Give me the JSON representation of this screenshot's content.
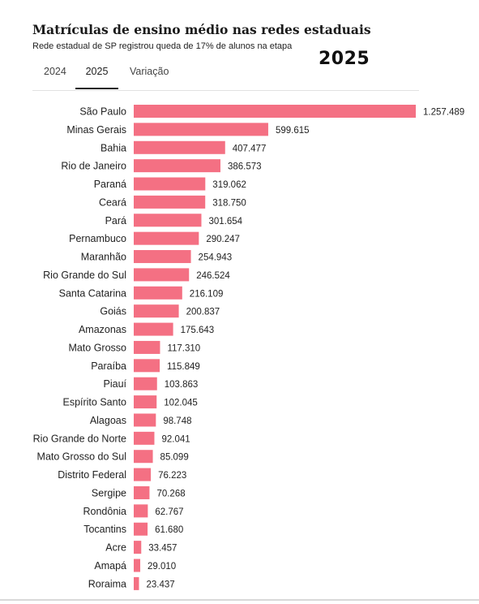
{
  "header": {
    "title": "Matrículas de ensino médio nas redes estaduais",
    "subtitle": "Rede estadual de SP registrou queda de 17% de alunos na etapa",
    "year_badge": "2025"
  },
  "tabs": [
    {
      "label": "2024",
      "active": false
    },
    {
      "label": "2025",
      "active": true
    },
    {
      "label": "Variação",
      "active": false
    }
  ],
  "colors": {
    "bar": "#f47083"
  },
  "chart_data": {
    "type": "bar",
    "orientation": "horizontal",
    "title": "Matrículas de ensino médio nas redes estaduais",
    "subtitle": "Rede estadual de SP registrou queda de 17% de alunos na etapa",
    "categories": [
      "São Paulo",
      "Minas Gerais",
      "Bahia",
      "Rio de Janeiro",
      "Paraná",
      "Ceará",
      "Pará",
      "Pernambuco",
      "Maranhão",
      "Rio Grande do Sul",
      "Santa Catarina",
      "Goiás",
      "Amazonas",
      "Mato Grosso",
      "Paraíba",
      "Piauí",
      "Espírito Santo",
      "Alagoas",
      "Rio Grande do Norte",
      "Mato Grosso do Sul",
      "Distrito Federal",
      "Sergipe",
      "Rondônia",
      "Tocantins",
      "Acre",
      "Amapá",
      "Roraima"
    ],
    "values": [
      1257489,
      599615,
      407477,
      386573,
      319062,
      318750,
      301654,
      290247,
      254943,
      246524,
      216109,
      200837,
      175643,
      117310,
      115849,
      103863,
      102045,
      98748,
      92041,
      85099,
      76223,
      70268,
      62767,
      61680,
      33457,
      29010,
      23437
    ],
    "value_labels": [
      "1.257.489",
      "599.615",
      "407.477",
      "386.573",
      "319.062",
      "318.750",
      "301.654",
      "290.247",
      "254.943",
      "246.524",
      "216.109",
      "200.837",
      "175.643",
      "117.310",
      "115.849",
      "103.863",
      "102.045",
      "98.748",
      "92.041",
      "85.099",
      "76.223",
      "70.268",
      "62.767",
      "61.680",
      "33.457",
      "29.010",
      "23.437"
    ],
    "xlim": [
      0,
      1257489
    ],
    "grid": false,
    "legend": "none"
  }
}
